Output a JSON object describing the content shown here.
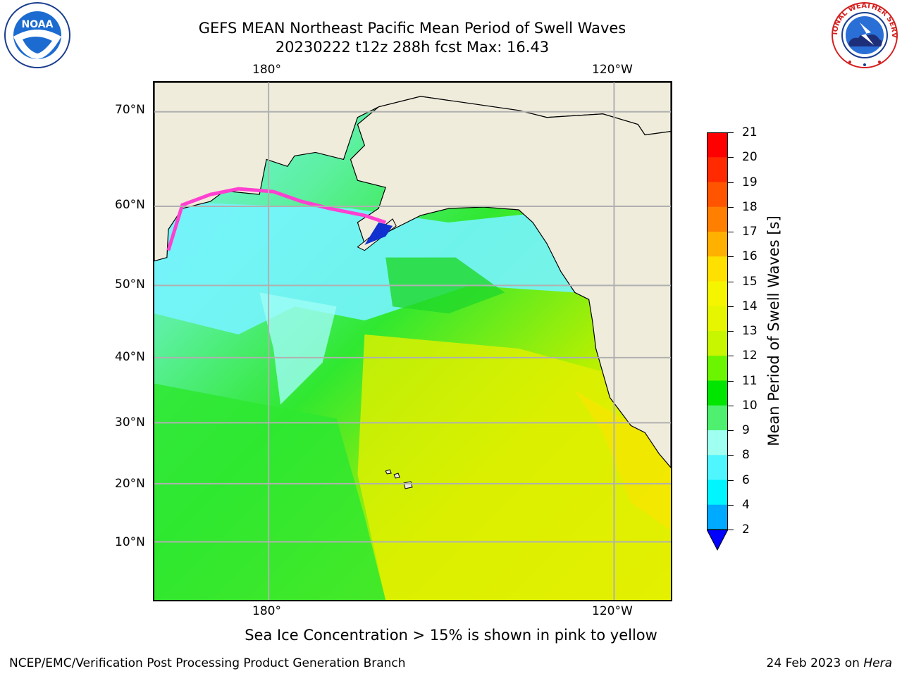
{
  "title": {
    "line1": "GEFS MEAN Northeast Pacific Mean Period of Swell Waves",
    "line2": "20230222 t12z 288h fcst   Max: 16.43"
  },
  "logos": {
    "left": {
      "name": "noaa-logo",
      "text": "NOAA"
    },
    "right": {
      "name": "nws-logo",
      "text": "NATIONAL WEATHER SERVICE"
    }
  },
  "map": {
    "lon_labels_top": [
      "180°",
      "120°W"
    ],
    "lon_labels_bottom": [
      "180°",
      "120°W"
    ],
    "lat_labels": [
      "70°N",
      "60°N",
      "50°N",
      "40°N",
      "30°N",
      "20°N",
      "10°N"
    ],
    "land_color": "#efecdc",
    "gridline_color": "#b0b0b0"
  },
  "colorbar": {
    "label": "Mean Period of Swell Waves [s]",
    "ticks": [
      "21",
      "20",
      "19",
      "18",
      "17",
      "16",
      "15",
      "14",
      "13",
      "12",
      "11",
      "10",
      "9",
      "8",
      "6",
      "4",
      "2"
    ],
    "colors": [
      "#ff0000",
      "#ff2a00",
      "#ff5500",
      "#ff8000",
      "#ffb000",
      "#ffe000",
      "#f5f500",
      "#e6f500",
      "#c8f500",
      "#6cf500",
      "#00e600",
      "#4ff070",
      "#9ffff0",
      "#4ff5ff",
      "#00f5ff",
      "#00aaff",
      "#0050ff"
    ],
    "extend_color": "#0000ff"
  },
  "notes": {
    "ice": "Sea Ice Concentration > 15% is shown in pink to yellow",
    "footer_left": "NCEP/EMC/Verification Post Processing Product Generation Branch",
    "footer_right_date": "24 Feb 2023 on ",
    "footer_right_host": "Hera"
  }
}
